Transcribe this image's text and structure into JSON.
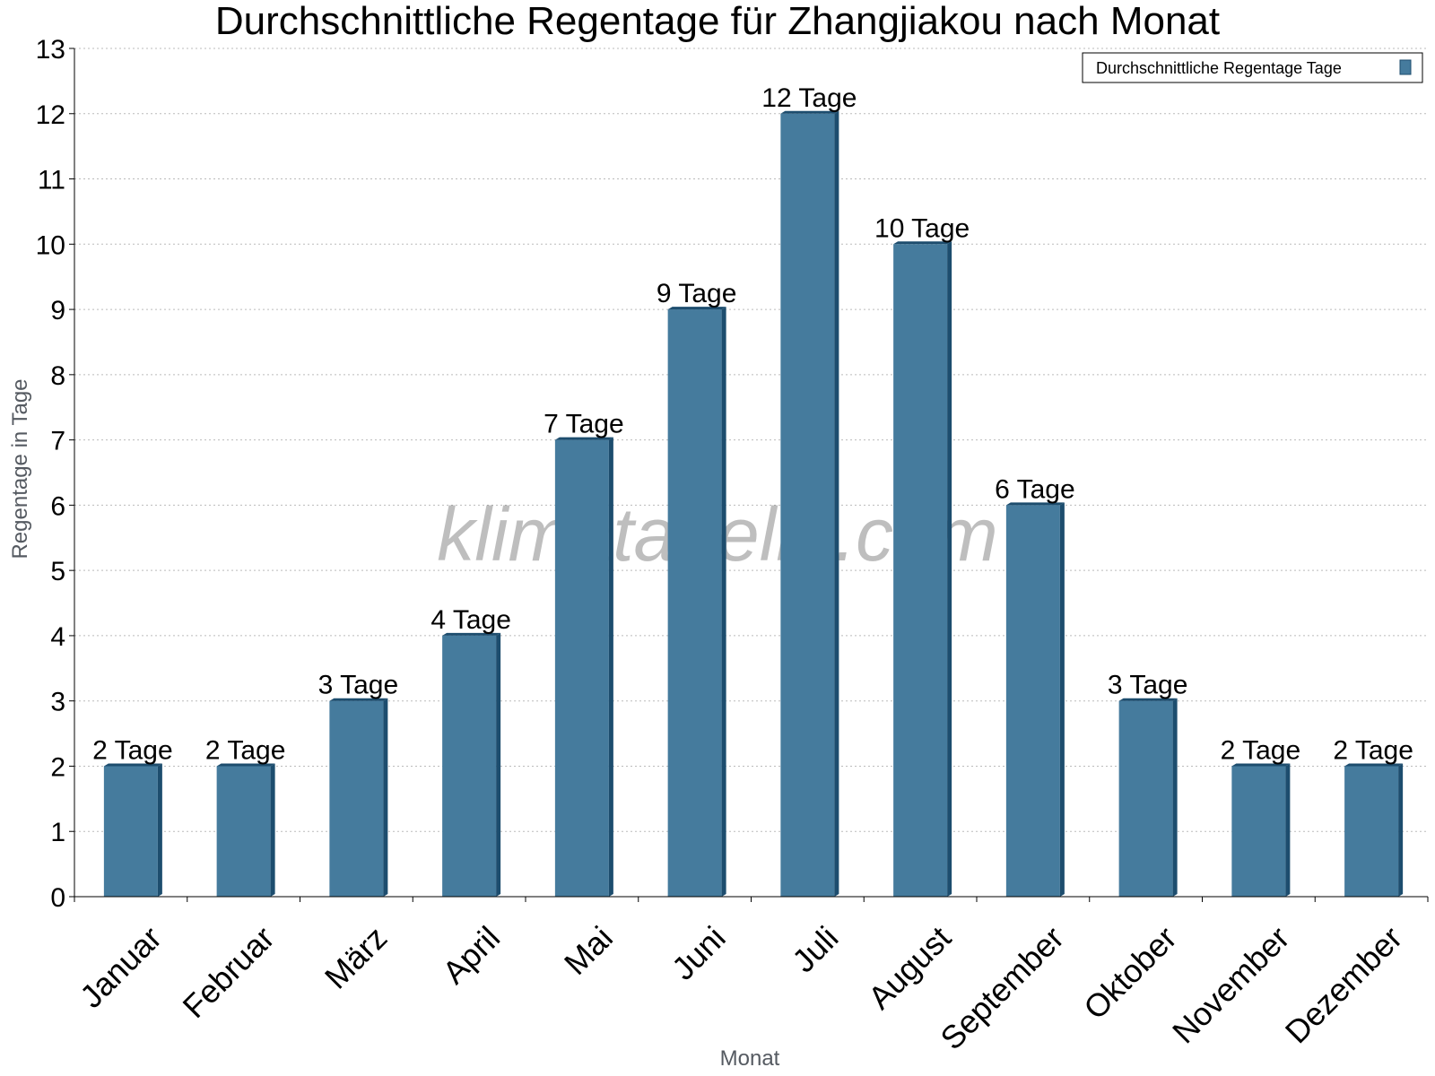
{
  "chart_data": {
    "type": "bar",
    "title": "Durchschnittliche Regentage für Zhangjiakou nach Monat",
    "xlabel": "Monat",
    "ylabel": "Regentage in Tage",
    "ylim": [
      0,
      13
    ],
    "yticks": [
      0,
      1,
      2,
      3,
      4,
      5,
      6,
      7,
      8,
      9,
      10,
      11,
      12,
      13
    ],
    "grid": true,
    "legend_position": "top-right",
    "watermark": "klimatabelle.com",
    "categories": [
      "Januar",
      "Februar",
      "März",
      "April",
      "Mai",
      "Juni",
      "Juli",
      "August",
      "September",
      "Oktober",
      "November",
      "Dezember"
    ],
    "series": [
      {
        "name": "Durchschnittliche Regentage Tage",
        "values": [
          2,
          2,
          3,
          4,
          7,
          9,
          12,
          10,
          6,
          3,
          2,
          2
        ],
        "labels": [
          "2 Tage",
          "2 Tage",
          "3 Tage",
          "4 Tage",
          "7 Tage",
          "9 Tage",
          "12 Tage",
          "10 Tage",
          "6 Tage",
          "3 Tage",
          "2 Tage",
          "2 Tage"
        ],
        "color": "#457b9d",
        "side_color": "#1d4d6e"
      }
    ]
  }
}
